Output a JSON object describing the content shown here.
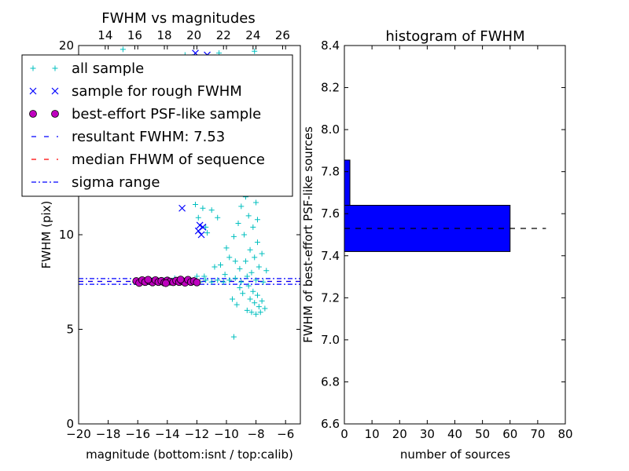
{
  "chart_data": [
    {
      "type": "scatter",
      "title": "FWHM vs magnitudes",
      "xlabel": "magnitude (bottom:isnt / top:calib)",
      "ylabel": "FWHM (pix)",
      "xlim": [
        -20,
        -5
      ],
      "ylim": [
        0,
        20
      ],
      "x_ticks": [
        -20,
        -18,
        -16,
        -14,
        -12,
        -10,
        -8,
        -6
      ],
      "x_tick_labels": [
        "−20",
        "−18",
        "−16",
        "−14",
        "−12",
        "−10",
        "−8",
        "−6"
      ],
      "y_ticks": [
        0,
        5,
        10,
        20
      ],
      "y_tick_labels": [
        "0",
        "5",
        "10",
        "20"
      ],
      "top_axis": {
        "offset": 32.2,
        "ticks": [
          14,
          16,
          18,
          20,
          22,
          24,
          26
        ],
        "tick_labels": [
          "14",
          "16",
          "18",
          "20",
          "22",
          "24",
          "26"
        ]
      },
      "legend": {
        "placement": "upper-left",
        "entries": [
          {
            "label": "all sample",
            "marker": "plus",
            "color": "#00bfbf"
          },
          {
            "label": "sample for rough FWHM",
            "marker": "x",
            "color": "#0000ff"
          },
          {
            "label": "best-effort PSF-like sample",
            "marker": "circle",
            "color": "#bf00bf"
          },
          {
            "label": "resultant FWHM: 7.53",
            "line": "dashed",
            "color": "#0000ff"
          },
          {
            "label": "median FHWM of sequence",
            "line": "dashed",
            "color": "#ff0000"
          },
          {
            "label": "sigma range",
            "line": "dashdot",
            "color": "#0000ff"
          }
        ]
      },
      "reference_lines": {
        "resultant_fwhm": 7.53,
        "median_fwhm": 7.53,
        "sigma_upper": 7.68,
        "sigma_lower": 7.38
      },
      "series": [
        {
          "name": "all sample",
          "marker": "plus",
          "color": "#00bfbf",
          "points": [
            [
              -16.2,
              7.5
            ],
            [
              -15.8,
              7.6
            ],
            [
              -15.4,
              7.5
            ],
            [
              -15.0,
              7.6
            ],
            [
              -14.6,
              7.5
            ],
            [
              -14.2,
              7.6
            ],
            [
              -13.8,
              7.5
            ],
            [
              -13.4,
              7.6
            ],
            [
              -13.0,
              7.5
            ],
            [
              -12.6,
              7.6
            ],
            [
              -12.2,
              7.5
            ],
            [
              -11.8,
              7.5
            ],
            [
              -11.4,
              7.6
            ],
            [
              -11.0,
              7.5
            ],
            [
              -10.6,
              7.6
            ],
            [
              -10.2,
              7.5
            ],
            [
              -9.8,
              7.6
            ],
            [
              -9.4,
              7.7
            ],
            [
              -9.0,
              7.5
            ],
            [
              -11.0,
              11.3
            ],
            [
              -10.6,
              10.9
            ],
            [
              -11.3,
              10.1
            ],
            [
              -10.0,
              9.3
            ],
            [
              -10.4,
              8.4
            ],
            [
              -9.8,
              8.8
            ],
            [
              -9.5,
              9.9
            ],
            [
              -9.2,
              10.6
            ],
            [
              -9.0,
              11.5
            ],
            [
              -9.6,
              12.8
            ],
            [
              -10.2,
              12.2
            ],
            [
              -9.3,
              13.7
            ],
            [
              -8.8,
              14.6
            ],
            [
              -8.6,
              15.8
            ],
            [
              -8.4,
              16.4
            ],
            [
              -8.2,
              17.2
            ],
            [
              -9.0,
              16.9
            ],
            [
              -8.7,
              18.6
            ],
            [
              -10.5,
              19.6
            ],
            [
              -8.1,
              19.7
            ],
            [
              -8.6,
              13.2
            ],
            [
              -8.3,
              12.4
            ],
            [
              -8.0,
              11.7
            ],
            [
              -8.5,
              11.0
            ],
            [
              -8.2,
              10.4
            ],
            [
              -8.8,
              10.0
            ],
            [
              -7.9,
              9.6
            ],
            [
              -8.4,
              9.2
            ],
            [
              -8.1,
              8.8
            ],
            [
              -8.7,
              8.6
            ],
            [
              -7.8,
              8.3
            ],
            [
              -8.3,
              8.0
            ],
            [
              -8.6,
              7.8
            ],
            [
              -8.0,
              7.6
            ],
            [
              -8.5,
              7.3
            ],
            [
              -8.2,
              7.0
            ],
            [
              -7.9,
              6.8
            ],
            [
              -8.4,
              6.6
            ],
            [
              -8.1,
              6.4
            ],
            [
              -7.6,
              6.5
            ],
            [
              -7.8,
              6.2
            ],
            [
              -8.6,
              6.0
            ],
            [
              -7.4,
              6.1
            ],
            [
              -9.3,
              6.3
            ],
            [
              -9.6,
              6.6
            ],
            [
              -8.9,
              6.9
            ],
            [
              -9.1,
              7.2
            ],
            [
              -8.0,
              5.8
            ],
            [
              -8.3,
              5.9
            ],
            [
              -7.7,
              5.9
            ],
            [
              -9.5,
              4.6
            ],
            [
              -7.5,
              7.5
            ],
            [
              -7.3,
              8.1
            ],
            [
              -7.6,
              9.0
            ],
            [
              -7.9,
              10.8
            ],
            [
              -8.0,
              12.9
            ],
            [
              -8.4,
              14.1
            ],
            [
              -8.1,
              15.3
            ],
            [
              -7.8,
              13.5
            ],
            [
              -8.7,
              12.0
            ],
            [
              -9.1,
              8.2
            ],
            [
              -9.4,
              8.6
            ],
            [
              -10.8,
              8.3
            ],
            [
              -10.1,
              7.9
            ],
            [
              -11.5,
              7.8
            ],
            [
              -12.0,
              7.8
            ],
            [
              -13.5,
              7.7
            ],
            [
              -17.0,
              19.8
            ],
            [
              -12.8,
              19.5
            ],
            [
              -10.8,
              19.3
            ],
            [
              -12.0,
              19.1
            ],
            [
              -12.3,
              19.4
            ],
            [
              -11.1,
              19.2
            ],
            [
              -10.9,
              18.9
            ],
            [
              -11.6,
              11.4
            ],
            [
              -11.9,
              10.9
            ],
            [
              -12.1,
              11.6
            ],
            [
              -11.4,
              10.4
            ],
            [
              -9.7,
              14.4
            ],
            [
              -9.9,
              15.2
            ]
          ]
        },
        {
          "name": "sample for rough FWHM",
          "marker": "x",
          "color": "#0000ff",
          "points": [
            [
              -13.0,
              11.4
            ],
            [
              -11.8,
              10.5
            ],
            [
              -11.6,
              10.4
            ],
            [
              -11.9,
              10.2
            ],
            [
              -11.7,
              10.0
            ],
            [
              -12.8,
              19.3
            ],
            [
              -12.1,
              19.6
            ],
            [
              -11.3,
              19.5
            ]
          ]
        },
        {
          "name": "best-effort PSF-like sample",
          "marker": "circle",
          "color": "#bf00bf",
          "points": [
            [
              -16.1,
              7.55
            ],
            [
              -15.9,
              7.45
            ],
            [
              -15.7,
              7.6
            ],
            [
              -15.5,
              7.5
            ],
            [
              -15.2,
              7.55
            ],
            [
              -15.0,
              7.48
            ],
            [
              -14.8,
              7.6
            ],
            [
              -14.6,
              7.5
            ],
            [
              -14.4,
              7.56
            ],
            [
              -14.2,
              7.47
            ],
            [
              -14.0,
              7.58
            ],
            [
              -13.8,
              7.52
            ],
            [
              -13.6,
              7.49
            ],
            [
              -13.4,
              7.57
            ],
            [
              -13.2,
              7.5
            ],
            [
              -13.0,
              7.56
            ],
            [
              -12.8,
              7.46
            ],
            [
              -12.6,
              7.62
            ],
            [
              -12.4,
              7.5
            ],
            [
              -12.2,
              7.55
            ],
            [
              -12.0,
              7.48
            ],
            [
              -15.3,
              7.62
            ],
            [
              -14.1,
              7.44
            ],
            [
              -13.1,
              7.63
            ]
          ]
        }
      ]
    },
    {
      "type": "bar",
      "orientation": "horizontal",
      "title": "histogram of FWHM",
      "xlabel": "number of sources",
      "ylabel": "FWHM of best-effort PSF-like sources",
      "xlim": [
        0,
        80
      ],
      "ylim": [
        6.6,
        8.4
      ],
      "x_ticks": [
        0,
        10,
        20,
        30,
        40,
        50,
        60,
        70,
        80
      ],
      "x_tick_labels": [
        "0",
        "10",
        "20",
        "30",
        "40",
        "50",
        "60",
        "70",
        "80"
      ],
      "y_ticks": [
        6.6,
        6.8,
        7.0,
        7.2,
        7.4,
        7.6,
        7.8,
        8.0,
        8.2,
        8.4
      ],
      "y_tick_labels": [
        "6.6",
        "6.8",
        "7.0",
        "7.2",
        "7.4",
        "7.6",
        "7.8",
        "8.0",
        "8.2",
        "8.4"
      ],
      "bars": [
        {
          "y_from": 7.42,
          "y_to": 7.64,
          "count": 60
        },
        {
          "y_from": 7.64,
          "y_to": 7.855,
          "count": 2
        },
        {
          "y_from": 7.855,
          "y_to": 8.28,
          "count": 0
        }
      ],
      "bar_color": "#0000ff",
      "reference_line": {
        "y": 7.53,
        "x_from": 0,
        "x_to": 73,
        "style": "dashed",
        "color": "#000000"
      }
    }
  ]
}
